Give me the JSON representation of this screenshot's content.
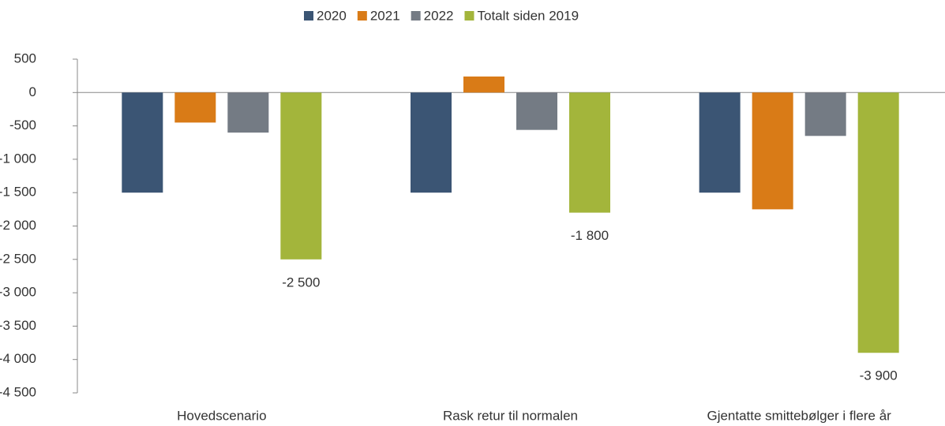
{
  "chart_data": {
    "type": "bar",
    "categories": [
      "Hovedscenario",
      "Rask retur til normalen",
      "Gjentatte smittebølger i flere år"
    ],
    "series": [
      {
        "name": "2020",
        "color": "#3b5574",
        "values": [
          -1500,
          -1500,
          -1500
        ]
      },
      {
        "name": "2021",
        "color": "#d97b17",
        "values": [
          -450,
          240,
          -1750
        ]
      },
      {
        "name": "2022",
        "color": "#747b84",
        "values": [
          -600,
          -560,
          -650
        ]
      },
      {
        "name": "Totalt siden 2019",
        "color": "#a3b53b",
        "values": [
          -2500,
          -1800,
          -3900
        ],
        "value_labels": [
          "-2 500",
          "-1 800",
          "-3 900"
        ]
      }
    ],
    "ylim": [
      -4500,
      500
    ],
    "yticks": [
      500,
      0,
      -500,
      {
        "value": -1000,
        "label": "-1 000"
      },
      {
        "value": -1500,
        "label": "-1 500"
      },
      {
        "value": -2000,
        "label": "-2 000"
      },
      {
        "value": -2500,
        "label": "-2 500"
      },
      {
        "value": -3000,
        "label": "-3 000"
      },
      {
        "value": -3500,
        "label": "-3 500"
      },
      {
        "value": -4000,
        "label": "-4 000"
      },
      {
        "value": -4500,
        "label": "-4 500"
      }
    ],
    "legend": "top"
  }
}
